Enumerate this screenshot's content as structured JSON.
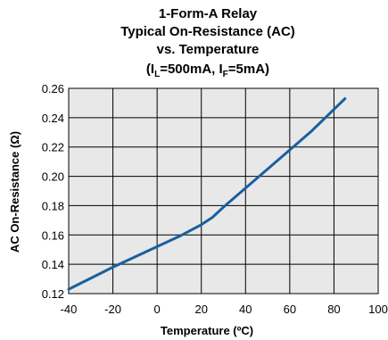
{
  "chart_data": {
    "type": "line",
    "title_lines": [
      "1-Form-A Relay",
      "Typical On-Resistance (AC)",
      "vs. Temperature"
    ],
    "title_conditions": {
      "open": "(I",
      "sub1": "L",
      "mid": "=500mA, I",
      "sub2": "F",
      "close": "=5mA)"
    },
    "xlabel": "Temperature (ºC)",
    "ylabel": "AC On-Resistance (Ω)",
    "xlim": [
      -40,
      100
    ],
    "ylim": [
      0.12,
      0.26
    ],
    "x_ticks": [
      "-40",
      "-20",
      "0",
      "20",
      "40",
      "60",
      "80",
      "100"
    ],
    "y_ticks": [
      "0.12",
      "0.14",
      "0.16",
      "0.18",
      "0.20",
      "0.22",
      "0.24",
      "0.26"
    ],
    "grid": true,
    "series": [
      {
        "color": "#1a5fa0",
        "x": [
          -40,
          -20,
          0,
          10,
          20,
          25,
          30,
          40,
          50,
          60,
          70,
          85
        ],
        "y": [
          0.123,
          0.138,
          0.152,
          0.159,
          0.167,
          0.172,
          0.179,
          0.192,
          0.205,
          0.218,
          0.231,
          0.253
        ]
      }
    ],
    "plot_background": "#e8e8e8"
  }
}
